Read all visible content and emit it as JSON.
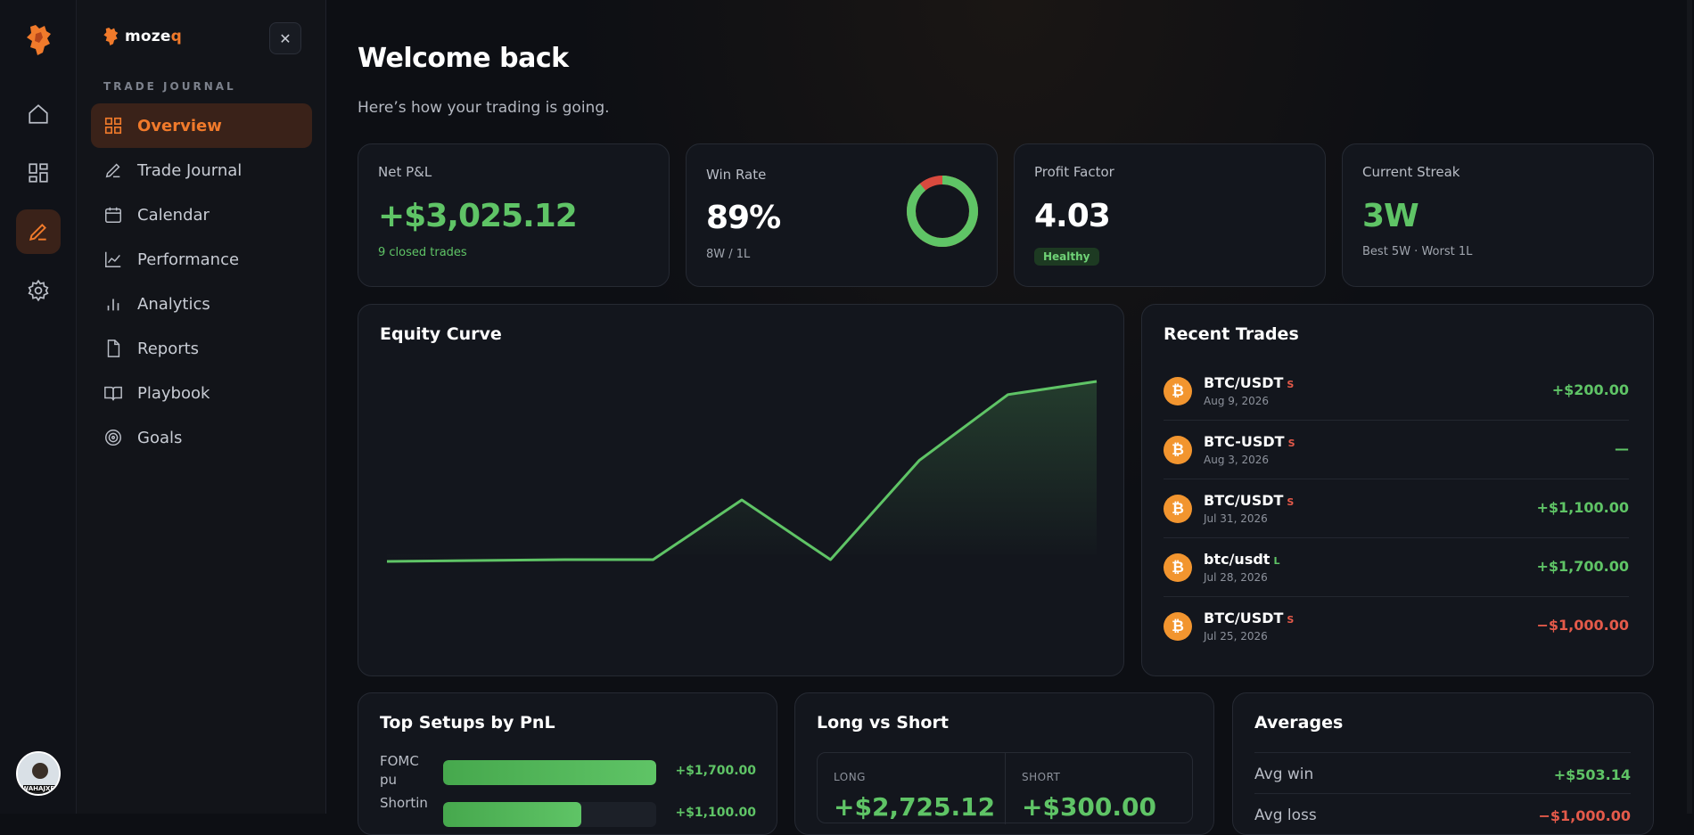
{
  "brand": {
    "name_main": "moze",
    "name_accent": "q"
  },
  "sidebar": {
    "section_label": "TRADE JOURNAL",
    "items": [
      {
        "label": "Overview",
        "icon": "grid-icon",
        "active": true
      },
      {
        "label": "Trade Journal",
        "icon": "pen-icon",
        "active": false
      },
      {
        "label": "Calendar",
        "icon": "calendar-icon",
        "active": false
      },
      {
        "label": "Performance",
        "icon": "line-chart-icon",
        "active": false
      },
      {
        "label": "Analytics",
        "icon": "bar-chart-icon",
        "active": false
      },
      {
        "label": "Reports",
        "icon": "file-icon",
        "active": false
      },
      {
        "label": "Playbook",
        "icon": "book-icon",
        "active": false
      },
      {
        "label": "Goals",
        "icon": "target-icon",
        "active": false
      }
    ]
  },
  "rail": {
    "avatar_label": "WAHAJXB"
  },
  "header": {
    "title": "Welcome back",
    "subtitle": "Here’s how your trading is going."
  },
  "kpis": {
    "net_pnl": {
      "label": "Net P&L",
      "value": "+$3,025.12",
      "sub": "9 closed trades"
    },
    "win_rate": {
      "label": "Win Rate",
      "value": "89%",
      "sub": "8W / 1L",
      "fraction": 0.89
    },
    "profit_factor": {
      "label": "Profit Factor",
      "value": "4.03",
      "badge": "Healthy"
    },
    "streak": {
      "label": "Current Streak",
      "value": "3W",
      "sub": "Best 5W · Worst 1L"
    }
  },
  "equity": {
    "title": "Equity Curve",
    "chart_data": {
      "type": "area",
      "series": [
        {
          "values": [
            0,
            10,
            20,
            20,
            700,
            20,
            1150,
            1900,
            2050
          ]
        }
      ]
    }
  },
  "recent_trades": {
    "title": "Recent Trades",
    "items": [
      {
        "symbol": "BTC/USDT",
        "side": "S",
        "date": "Aug 9, 2026",
        "pnl": "+$200.00",
        "tone": "green"
      },
      {
        "symbol": "BTC-USDT",
        "side": "S",
        "date": "Aug 3, 2026",
        "pnl": "—",
        "tone": "green"
      },
      {
        "symbol": "BTC/USDT",
        "side": "S",
        "date": "Jul 31, 2026",
        "pnl": "+$1,100.00",
        "tone": "green"
      },
      {
        "symbol": "btc/usdt",
        "side": "L",
        "date": "Jul 28, 2026",
        "pnl": "+$1,700.00",
        "tone": "green"
      },
      {
        "symbol": "BTC/USDT",
        "side": "S",
        "date": "Jul 25, 2026",
        "pnl": "−$1,000.00",
        "tone": "red"
      }
    ]
  },
  "top_setups": {
    "title": "Top Setups by PnL",
    "items": [
      {
        "name": "FOMC pu",
        "value": "+$1,700.00",
        "fraction": 1.0
      },
      {
        "name": "Shortin",
        "value": "+$1,100.00",
        "fraction": 0.65
      }
    ]
  },
  "long_short": {
    "title": "Long vs Short",
    "long": {
      "label": "LONG",
      "value": "+$2,725.12"
    },
    "short": {
      "label": "SHORT",
      "value": "+$300.00"
    }
  },
  "averages": {
    "title": "Averages",
    "rows": [
      {
        "label": "Avg win",
        "value": "+$503.14",
        "tone": "green"
      },
      {
        "label": "Avg loss",
        "value": "−$1,000.00",
        "tone": "red"
      }
    ]
  }
}
